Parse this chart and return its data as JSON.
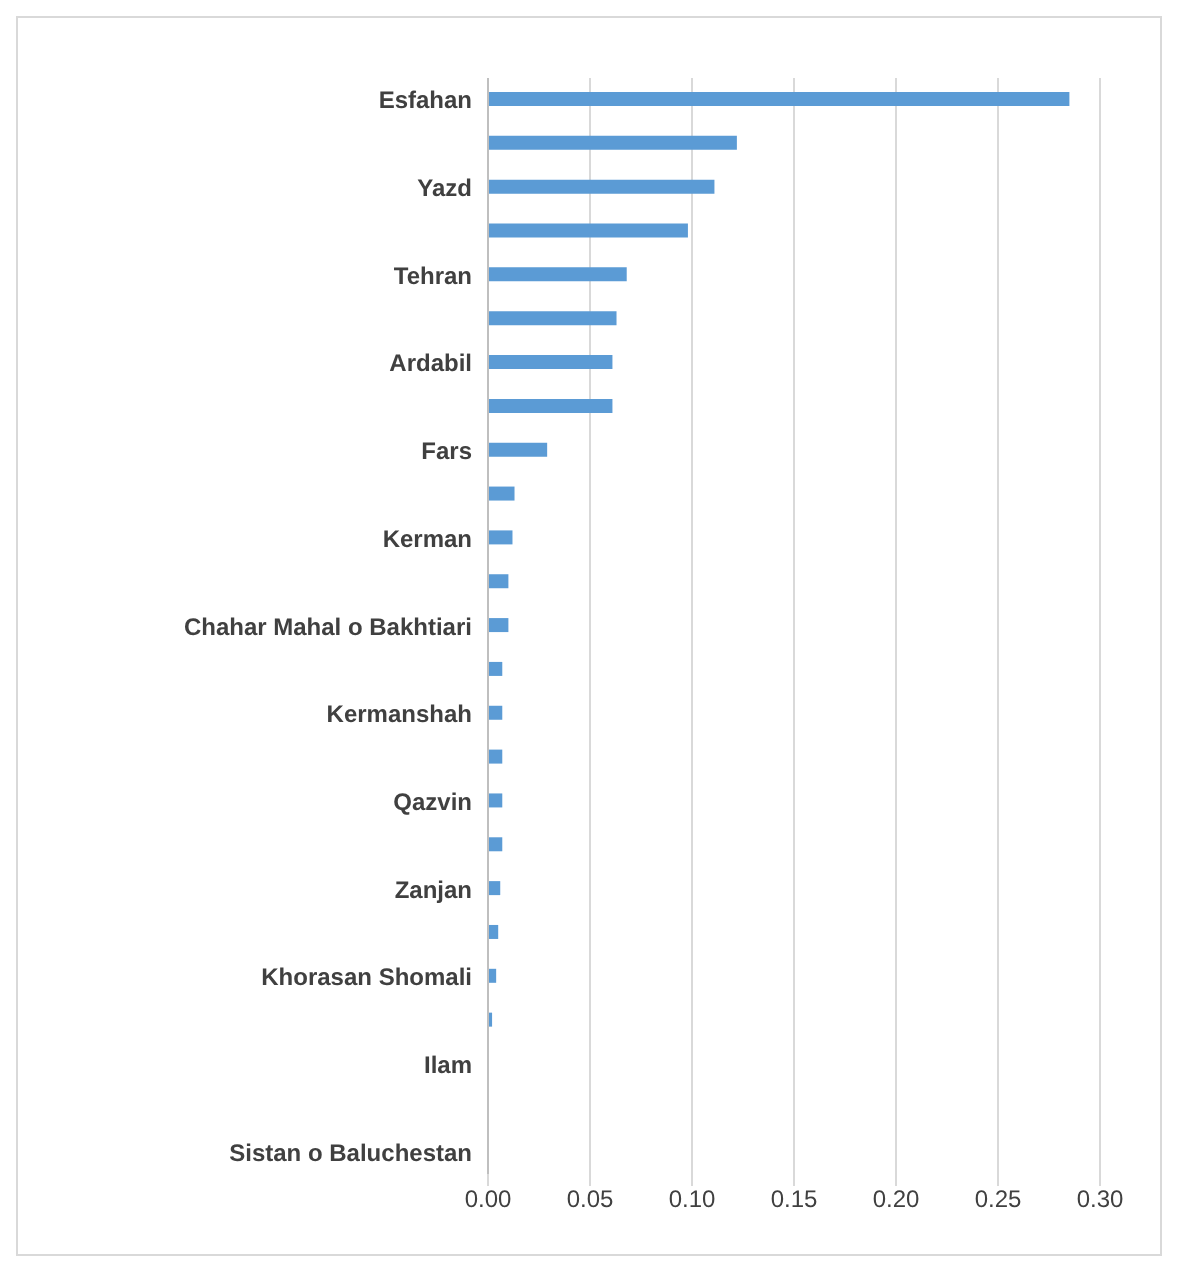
{
  "chart_data": {
    "type": "bar",
    "orientation": "horizontal",
    "categories": [
      "Esfahan",
      null,
      "Yazd",
      null,
      "Tehran",
      null,
      "Ardabil",
      null,
      "Fars",
      null,
      "Kerman",
      null,
      "Chahar Mahal o Bakhtiari",
      null,
      "Kermanshah",
      null,
      "Qazvin",
      null,
      "Zanjan",
      null,
      "Khorasan Shomali",
      null,
      "Ilam",
      null,
      "Sistan o  Baluchestan"
    ],
    "values": [
      0.285,
      0.122,
      0.111,
      0.098,
      0.068,
      0.063,
      0.061,
      0.061,
      0.029,
      0.013,
      0.012,
      0.01,
      0.01,
      0.007,
      0.007,
      0.007,
      0.007,
      0.007,
      0.006,
      0.005,
      0.004,
      0.002,
      0,
      0,
      0
    ],
    "color": "#5b9bd5",
    "xlim": [
      0,
      0.3
    ],
    "xticks": [
      {
        "value": 0,
        "label": "0.00"
      },
      {
        "value": 0.05,
        "label": "0.05"
      },
      {
        "value": 0.1,
        "label": "0.10"
      },
      {
        "value": 0.15,
        "label": "0.15"
      },
      {
        "value": 0.2,
        "label": "0.20"
      },
      {
        "value": 0.25,
        "label": "0.25"
      },
      {
        "value": 0.3,
        "label": "0.30"
      }
    ],
    "grid": "x"
  }
}
